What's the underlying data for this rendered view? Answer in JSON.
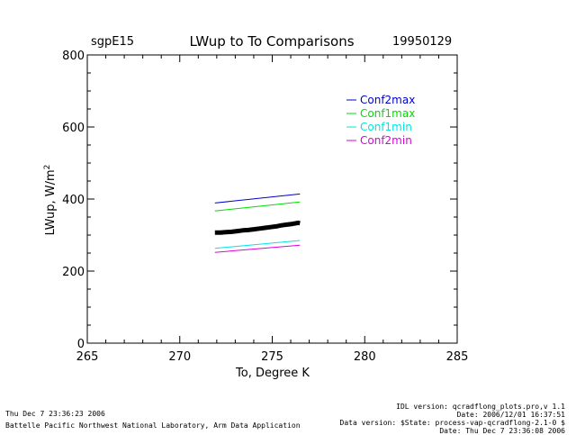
{
  "header": {
    "site": "sgpE15",
    "title": "LWup to To Comparisons",
    "date": "19950129"
  },
  "footer": {
    "left": [
      "Thu Dec  7 23:36:23 2006",
      "Battelle Pacific Northwest National Laboratory, Arm Data Application"
    ],
    "right": [
      "IDL version: qcradflong_plots.pro,v 1.1",
      "Date: 2006/12/01 16:37:51",
      "Data version: $State: process-vap-qcradflong-2.1-0 $",
      "Date: Thu Dec  7 23:36:08 2006"
    ]
  },
  "chart_data": {
    "type": "line",
    "xlabel": "To, Degree K",
    "ylabel": "LWup, W/m",
    "ylabel_superscript": "2",
    "xlim": [
      265,
      285
    ],
    "ylim": [
      0,
      800
    ],
    "x_ticks": [
      "265",
      "270",
      "275",
      "280",
      "285"
    ],
    "y_ticks": [
      "0",
      "200",
      "400",
      "600",
      "800"
    ],
    "grid": false,
    "legend_position": "top-right",
    "series": [
      {
        "name": "Conf2max",
        "color": "#0000cc",
        "x": [
          271.9,
          276.5
        ],
        "y": [
          389,
          414
        ]
      },
      {
        "name": "Conf1max",
        "color": "#00dd00",
        "x": [
          271.9,
          276.5
        ],
        "y": [
          367,
          392
        ]
      },
      {
        "name": "Conf1min",
        "color": "#00e5e5",
        "x": [
          271.9,
          276.5
        ],
        "y": [
          263,
          285
        ]
      },
      {
        "name": "Conf2min",
        "color": "#dd00dd",
        "x": [
          271.9,
          276.5
        ],
        "y": [
          252,
          272
        ]
      }
    ],
    "observations": {
      "color": "#000000",
      "x": [
        271.9,
        272.2,
        272.5,
        272.8,
        273.1,
        273.4,
        273.7,
        274.0,
        274.3,
        274.6,
        274.9,
        275.2,
        275.5,
        275.8,
        276.1,
        276.4,
        276.5
      ],
      "y": [
        307,
        307,
        308,
        309,
        311,
        313,
        314,
        316,
        318,
        320,
        322,
        324,
        327,
        329,
        331,
        334,
        333
      ]
    }
  }
}
